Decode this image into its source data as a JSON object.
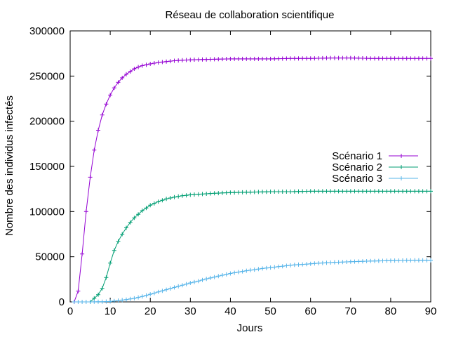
{
  "chart_data": {
    "type": "line",
    "title": "Réseau de collaboration scientifique",
    "xlabel": "Jours",
    "ylabel": "Nombre des individus infectés",
    "xlim": [
      0,
      90
    ],
    "ylim": [
      0,
      300000
    ],
    "xticks": [
      0,
      10,
      20,
      30,
      40,
      50,
      60,
      70,
      80,
      90
    ],
    "yticks": [
      0,
      50000,
      100000,
      150000,
      200000,
      250000,
      300000
    ],
    "grid": false,
    "legend_position": "right",
    "series": [
      {
        "name": "Scénario 1",
        "color": "#9400d3",
        "x": [
          1,
          2,
          3,
          4,
          5,
          6,
          7,
          8,
          9,
          10,
          11,
          12,
          13,
          14,
          15,
          16,
          17,
          18,
          19,
          20,
          22,
          24,
          26,
          28,
          30,
          35,
          40,
          45,
          50,
          55,
          60,
          65,
          70,
          75,
          80,
          85,
          90
        ],
        "y": [
          0,
          12000,
          53000,
          100000,
          138000,
          168000,
          190000,
          207000,
          219000,
          229000,
          237000,
          243000,
          248000,
          252000,
          255000,
          258000,
          260000,
          261500,
          262500,
          263500,
          265000,
          266000,
          267000,
          267500,
          268000,
          268500,
          269000,
          269000,
          269000,
          269500,
          269500,
          270000,
          270000,
          269500,
          269500,
          269500,
          269500
        ]
      },
      {
        "name": "Scénario 2",
        "color": "#009e73",
        "x": [
          5,
          6,
          7,
          8,
          9,
          10,
          11,
          12,
          13,
          14,
          15,
          16,
          17,
          18,
          19,
          20,
          22,
          24,
          26,
          28,
          30,
          35,
          40,
          45,
          50,
          55,
          60,
          65,
          70,
          75,
          80,
          85,
          90
        ],
        "y": [
          0,
          4000,
          8000,
          15000,
          27000,
          43000,
          57000,
          67000,
          75000,
          82000,
          88000,
          93000,
          97000,
          101000,
          104000,
          107000,
          111000,
          114000,
          116000,
          117500,
          118500,
          120000,
          121000,
          121500,
          122000,
          122000,
          122500,
          122500,
          122500,
          122500,
          122500,
          122500,
          122500
        ]
      },
      {
        "name": "Scénario 3",
        "color": "#56b4e9",
        "x": [
          1,
          5,
          8,
          10,
          12,
          14,
          16,
          18,
          20,
          22,
          24,
          26,
          28,
          30,
          32,
          34,
          36,
          38,
          40,
          42,
          44,
          46,
          48,
          50,
          52,
          54,
          56,
          58,
          60,
          62,
          64,
          66,
          68,
          70,
          72,
          74,
          76,
          78,
          80,
          82,
          84,
          86,
          88,
          90
        ],
        "y": [
          0,
          0,
          200,
          500,
          1500,
          2500,
          4000,
          6000,
          8500,
          11000,
          13500,
          16000,
          18500,
          21000,
          23000,
          25500,
          27500,
          29500,
          31500,
          33000,
          34500,
          35700,
          37000,
          38000,
          39000,
          40000,
          41000,
          41500,
          42200,
          42800,
          43300,
          43800,
          44100,
          44500,
          44800,
          45100,
          45300,
          45500,
          45700,
          45800,
          45900,
          46000,
          46000,
          46000
        ]
      }
    ]
  }
}
